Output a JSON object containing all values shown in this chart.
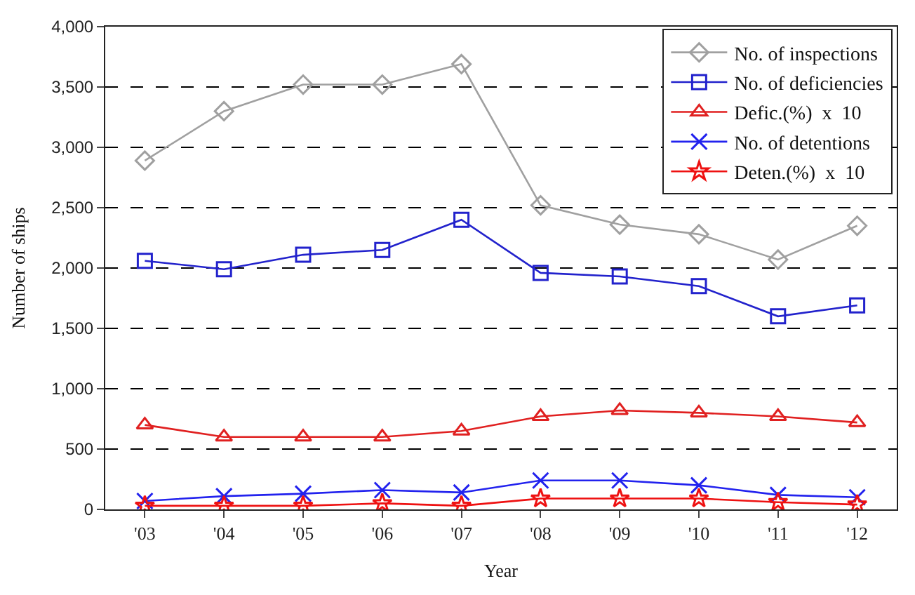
{
  "chart_data": {
    "type": "line",
    "xlabel": "Year",
    "ylabel": "Number of ships",
    "categories": [
      "'03",
      "'04",
      "'05",
      "'06",
      "'07",
      "'08",
      "'09",
      "'10",
      "'11",
      "'12"
    ],
    "ylim": [
      0,
      4000
    ],
    "yticks": [
      0,
      {
        "value": 500,
        "label": "500"
      },
      {
        "value": 1000,
        "label": "1,000"
      },
      {
        "value": 1500,
        "label": "1,500"
      },
      {
        "value": 2000,
        "label": "2,000"
      },
      {
        "value": 2500,
        "label": "2,500"
      },
      {
        "value": 3000,
        "label": "3,000"
      },
      {
        "value": 3500,
        "label": "3,500"
      },
      {
        "value": 4000,
        "label": "4,000"
      }
    ],
    "grid": "y",
    "legend": "top right",
    "line_style": "solid",
    "series": [
      {
        "name": "No. of inspections",
        "color": "#a0a0a0",
        "marker": "diamond",
        "values": [
          2890,
          3300,
          3520,
          3520,
          3690,
          2520,
          2360,
          2280,
          2070,
          2350
        ]
      },
      {
        "name": "No. of deficiencies",
        "color": "#2222cc",
        "marker": "square",
        "values": [
          2060,
          1990,
          2110,
          2150,
          2400,
          1960,
          1930,
          1850,
          1600,
          1690
        ]
      },
      {
        "name": "Defic.(%)  x  10",
        "color": "#e02020",
        "marker": "triangle",
        "values": [
          700,
          600,
          600,
          600,
          650,
          770,
          820,
          800,
          770,
          720
        ]
      },
      {
        "name": "No. of detentions",
        "color": "#2222ee",
        "marker": "cross",
        "values": [
          70,
          110,
          130,
          160,
          140,
          240,
          240,
          200,
          120,
          100
        ]
      },
      {
        "name": "Deten.(%)  x  10",
        "color": "#ee1111",
        "marker": "star",
        "values": [
          30,
          30,
          30,
          50,
          30,
          90,
          90,
          90,
          60,
          40
        ]
      }
    ]
  }
}
